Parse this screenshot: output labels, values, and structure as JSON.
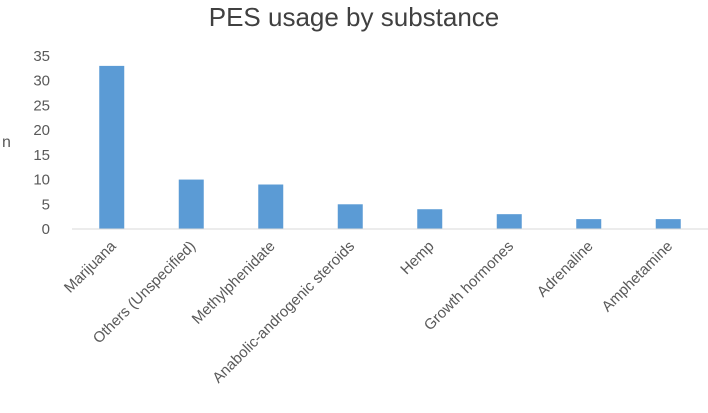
{
  "chart_data": {
    "type": "bar",
    "title": "PES usage by substance",
    "xlabel": "",
    "ylabel": "n",
    "categories": [
      "Marijuana",
      "Others (Unspecified)",
      "Methylphenidate",
      "Anabolic-androgenic steroids",
      "Hemp",
      "Growth hormones",
      "Adrenaline",
      "Amphetamine"
    ],
    "values": [
      33,
      10,
      9,
      5,
      4,
      3,
      2,
      2
    ],
    "ylim": [
      0,
      35
    ],
    "yticks": [
      0,
      5,
      10,
      15,
      20,
      25,
      30,
      35
    ],
    "grid": false,
    "legend": "none",
    "bar_color": "#5b9bd5"
  }
}
